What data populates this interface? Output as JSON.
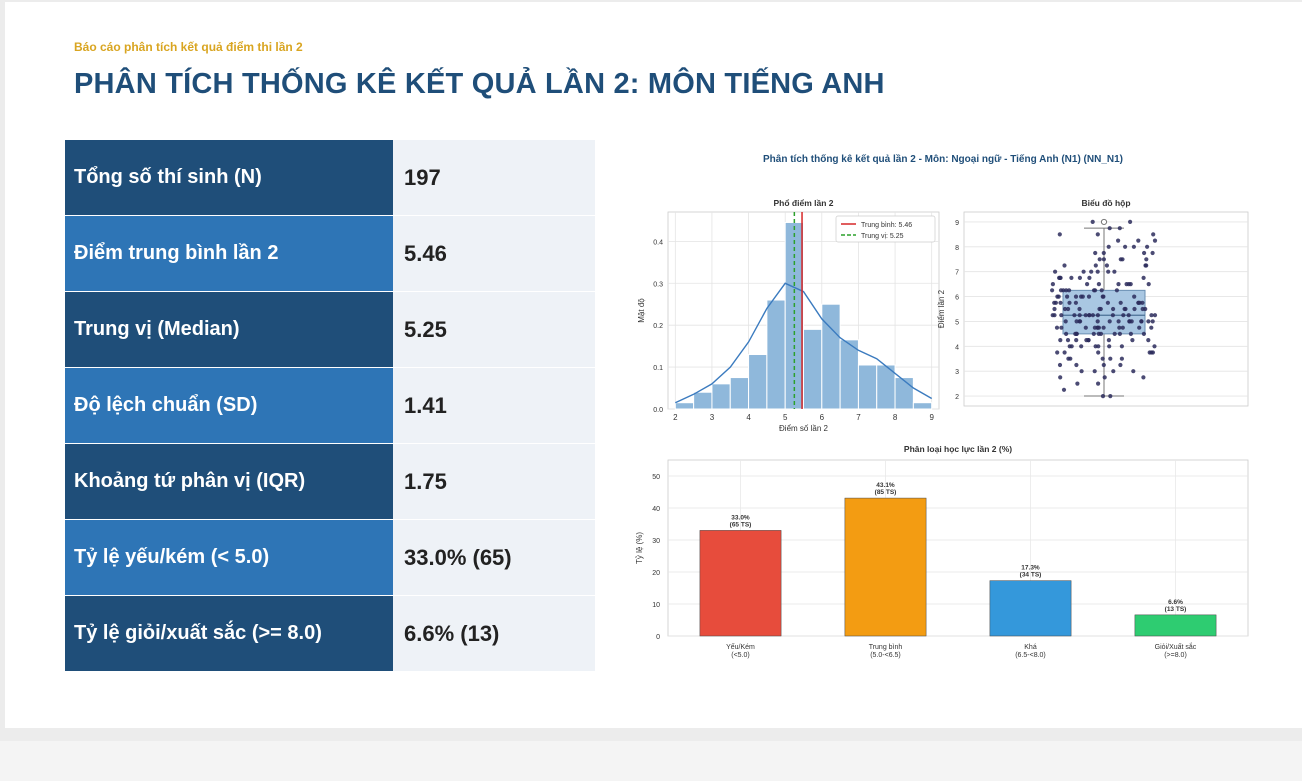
{
  "header": {
    "subtitle": "Báo cáo phân tích kết quả điểm thi lần 2",
    "title": "PHÂN TÍCH THỐNG KÊ KẾT QUẢ LẦN 2: MÔN TIẾNG ANH"
  },
  "stats": [
    {
      "label": "Tổng số thí sinh (N)",
      "value": "197",
      "color": "#1f4e79"
    },
    {
      "label": "Điểm trung bình lần 2",
      "value": "5.46",
      "color": "#2e75b6"
    },
    {
      "label": "Trung vị (Median)",
      "value": "5.25",
      "color": "#1f4e79"
    },
    {
      "label": "Độ lệch chuẩn (SD)",
      "value": "1.41",
      "color": "#2e75b6"
    },
    {
      "label": "Khoảng tứ phân vị (IQR)",
      "value": "1.75",
      "color": "#1f4e79"
    },
    {
      "label": "Tỷ lệ yếu/kém (< 5.0)",
      "value": "33.0% (65)",
      "color": "#2e75b6"
    },
    {
      "label": "Tỷ lệ giỏi/xuất sắc (>= 8.0)",
      "value": "6.6% (13)",
      "color": "#1f4e79"
    }
  ],
  "figure": {
    "suptitle": "Phân tích thống kê kết quả lần 2 - Môn: Ngoại ngữ - Tiếng Anh (N1) (NN_N1)"
  },
  "chart_data": [
    {
      "type": "bar",
      "subtype": "histogram-with-kde",
      "title": "Phổ điểm lần 2",
      "xlabel": "Điểm số lần 2",
      "ylabel": "Mật độ",
      "xlim": [
        1.8,
        9.2
      ],
      "ylim": [
        0,
        0.47
      ],
      "xticks": [
        2,
        3,
        4,
        5,
        6,
        7,
        8,
        9
      ],
      "yticks": [
        0.0,
        0.1,
        0.2,
        0.3,
        0.4
      ],
      "grid": true,
      "legend_position": "top-right",
      "bin_edges": [
        2.0,
        2.5,
        3.0,
        3.5,
        4.0,
        4.5,
        5.0,
        5.5,
        6.0,
        6.5,
        7.0,
        7.5,
        8.0,
        8.5,
        9.0
      ],
      "density": [
        0.015,
        0.04,
        0.06,
        0.075,
        0.13,
        0.26,
        0.445,
        0.19,
        0.25,
        0.165,
        0.105,
        0.105,
        0.075,
        0.015
      ],
      "kde": {
        "x": [
          2,
          2.5,
          3,
          3.5,
          4,
          4.5,
          5,
          5.5,
          6,
          6.5,
          7,
          7.5,
          8,
          8.5,
          9
        ],
        "y": [
          0.015,
          0.035,
          0.06,
          0.1,
          0.16,
          0.24,
          0.3,
          0.28,
          0.215,
          0.17,
          0.14,
          0.12,
          0.085,
          0.05,
          0.025
        ]
      },
      "lines": [
        {
          "name": "Trung bình: 5.46",
          "x": 5.46,
          "color": "#d62728",
          "style": "solid"
        },
        {
          "name": "Trung vị: 5.25",
          "x": 5.25,
          "color": "#2ca02c",
          "style": "dashed"
        }
      ]
    },
    {
      "type": "scatter",
      "subtype": "box-with-strip",
      "title": "Biểu đồ hộp",
      "ylabel": "Điểm lần 2",
      "ylim": [
        1.6,
        9.4
      ],
      "yticks": [
        2,
        3,
        4,
        5,
        6,
        7,
        8,
        9
      ],
      "grid": true,
      "box": {
        "q1": 4.5,
        "median": 5.25,
        "q3": 6.25,
        "whisker_low": 2.0,
        "whisker_high": 8.75,
        "outliers": [
          9.0
        ]
      }
    },
    {
      "type": "bar",
      "title": "Phân loại học lực lần 2 (%)",
      "ylabel": "Tỷ lệ (%)",
      "ylim": [
        0,
        55
      ],
      "yticks": [
        0,
        10,
        20,
        30,
        40,
        50
      ],
      "grid": true,
      "categories": [
        "Yếu/Kém\n(<5.0)",
        "Trung bình\n(5.0-<6.5)",
        "Khá\n(6.5-<8.0)",
        "Giỏi/Xuất sắc\n(>=8.0)"
      ],
      "values": [
        33.0,
        43.1,
        17.3,
        6.6
      ],
      "labels": [
        "33.0%\n(65 TS)",
        "43.1%\n(85 TS)",
        "17.3%\n(34 TS)",
        "6.6%\n(13 TS)"
      ],
      "colors": [
        "#e74c3c",
        "#f39c12",
        "#3498db",
        "#2ecc71"
      ]
    }
  ]
}
